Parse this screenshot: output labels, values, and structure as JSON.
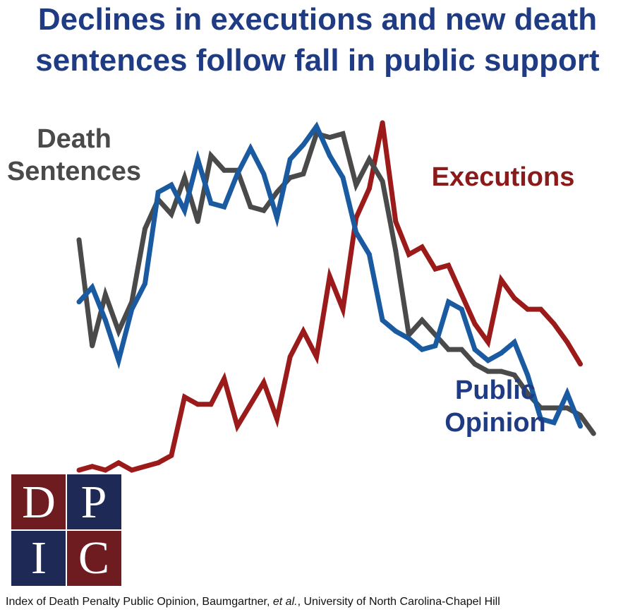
{
  "title": {
    "line1": "Declines in executions and new death",
    "line2": "sentences follow fall in public support"
  },
  "labels": {
    "death_sentences_line1": "Death",
    "death_sentences_line2": "Sentences",
    "executions": "Executions",
    "public_opinion_line1": "Public",
    "public_opinion_line2": "Opinion"
  },
  "logo": {
    "letters": [
      "D",
      "P",
      "I",
      "C"
    ],
    "colors": {
      "maroon": "#6e1c1f",
      "navy": "#1e2a55"
    }
  },
  "source": {
    "before": "Index of Death Penalty Public Opinion, Baumgartner, ",
    "italic": "et al.",
    "after": ", University of North Carolina-Chapel Hill"
  },
  "chart_data": {
    "type": "line",
    "x": [
      1974,
      1975,
      1976,
      1977,
      1978,
      1979,
      1980,
      1981,
      1982,
      1983,
      1984,
      1985,
      1986,
      1987,
      1988,
      1989,
      1990,
      1991,
      1992,
      1993,
      1994,
      1995,
      1996,
      1997,
      1998,
      1999,
      2000,
      2001,
      2002,
      2003,
      2004,
      2005,
      2006,
      2007,
      2008,
      2009,
      2010,
      2011,
      2012,
      2013,
      2014
    ],
    "xlim": [
      1974,
      2014
    ],
    "ylim": [
      0,
      100
    ],
    "axes_visible": false,
    "series": [
      {
        "name": "Death Sentences",
        "color": "#4a4a4a",
        "values": [
          63,
          34,
          48,
          38,
          46,
          66,
          74,
          70,
          80,
          68,
          86,
          82,
          82,
          72,
          71,
          76,
          80,
          81,
          92,
          91,
          92,
          78,
          85,
          79,
          60,
          37,
          41,
          37,
          33,
          33,
          29,
          27,
          27,
          26,
          21,
          17,
          17,
          17,
          15,
          10,
          null
        ]
      },
      {
        "name": "Executions",
        "color": "#9b1b1b",
        "values": [
          0,
          1,
          0,
          2,
          0,
          1,
          2,
          4,
          20,
          18,
          18,
          25,
          12,
          18,
          24,
          14,
          31,
          38,
          31,
          53,
          44,
          69,
          77,
          95,
          68,
          59,
          61,
          55,
          56,
          48,
          40,
          35,
          52,
          47,
          44,
          44,
          40,
          35,
          29,
          null,
          null
        ]
      },
      {
        "name": "Public Opinion",
        "color": "#1a5aa0",
        "values": [
          46,
          50,
          41,
          30,
          44,
          51,
          76,
          78,
          71,
          85,
          73,
          72,
          81,
          88,
          81,
          69,
          85,
          89,
          94,
          86,
          80,
          65,
          59,
          41,
          38,
          36,
          33,
          34,
          46,
          44,
          33,
          30,
          32,
          35,
          26,
          14,
          13,
          21,
          12,
          null,
          null
        ]
      }
    ]
  }
}
